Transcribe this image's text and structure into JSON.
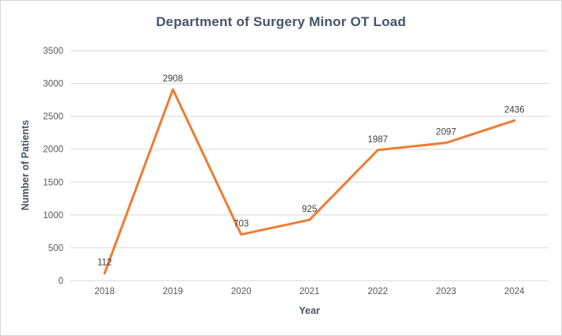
{
  "chart_data": {
    "type": "line",
    "title": "Department of Surgery Minor OT Load",
    "xlabel": "Year",
    "ylabel": "Number of Patients",
    "categories": [
      "2018",
      "2019",
      "2020",
      "2021",
      "2022",
      "2023",
      "2024"
    ],
    "series": [
      {
        "name": "Number of Patients",
        "values": [
          112,
          2908,
          703,
          925,
          1987,
          2097,
          2436
        ]
      }
    ],
    "data_labels": [
      "112",
      "2908",
      "703",
      "925",
      "1987",
      "2097",
      "2436"
    ],
    "ylim": [
      0,
      3500
    ],
    "ytick_step": 500,
    "ytick_labels": [
      "0",
      "500",
      "1000",
      "1500",
      "2000",
      "2500",
      "3000",
      "3500"
    ],
    "grid": "horizontal",
    "legend": "none",
    "colors": {
      "line": "#ED7D31",
      "title": "#44546A",
      "axis_title": "#44546A",
      "tick_label": "#595959",
      "data_label": "#404040",
      "gridline": "#D9D9D9",
      "background": "#FFFFFF",
      "border": "#D6D6D6"
    }
  }
}
